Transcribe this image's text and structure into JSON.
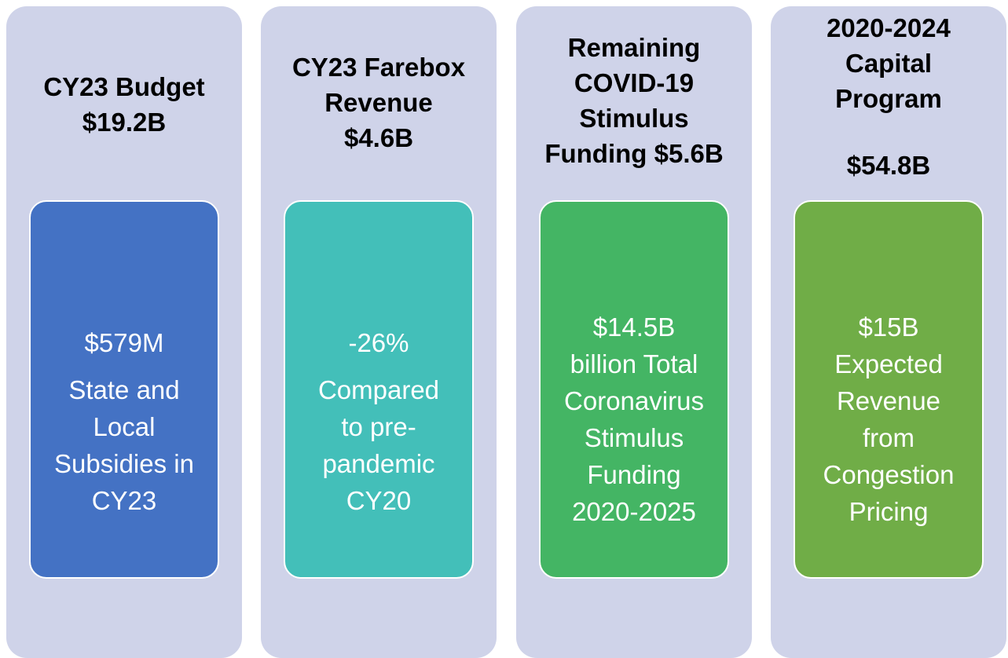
{
  "cards": [
    {
      "title_lines": [
        "CY23 Budget",
        "$19.2B"
      ],
      "figure": "$579M",
      "lines": [
        "State and",
        "Local",
        "Subsidies in",
        "CY23"
      ]
    },
    {
      "title_lines": [
        "CY23 Farebox",
        "Revenue",
        "$4.6B"
      ],
      "figure": "-26%",
      "lines": [
        "Compared",
        "to pre-",
        "pandemic",
        "CY20"
      ]
    },
    {
      "title_lines": [
        "Remaining",
        "COVID-19",
        "Stimulus",
        "Funding $5.6B"
      ],
      "figure": "$14.5B",
      "lines": [
        "billion Total",
        "Coronavirus",
        "Stimulus",
        "Funding",
        "2020-2025"
      ]
    },
    {
      "title_lines": [
        "2020-2024",
        "Capital",
        "Program"
      ],
      "amount": "$54.8B",
      "figure": "$15B",
      "lines": [
        "Expected",
        "Revenue",
        "from",
        "Congestion",
        "Pricing"
      ]
    }
  ]
}
